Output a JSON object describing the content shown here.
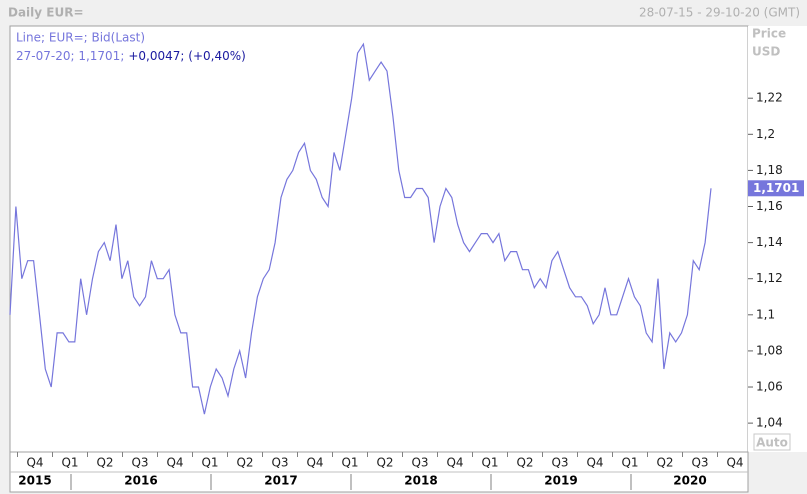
{
  "chart_data": {
    "type": "line",
    "title": "Daily EUR=",
    "date_range": "28-07-15 - 29-10-20 (GMT)",
    "legend_line1": "Line; EUR=; Bid(Last)",
    "legend_date_price": "27-07-20; 1,1701;",
    "legend_change": "+0,0047; (+0,40%)",
    "axis_title": "Price",
    "axis_unit": "USD",
    "scale_button": "Auto",
    "last_label": "1,1701",
    "color": "#7676dc",
    "series": [
      {
        "name": "EUR=",
        "color": "#7676dc",
        "values": [
          1.1,
          1.16,
          1.12,
          1.13,
          1.13,
          1.1,
          1.07,
          1.06,
          1.09,
          1.09,
          1.085,
          1.085,
          1.12,
          1.1,
          1.12,
          1.135,
          1.14,
          1.13,
          1.15,
          1.12,
          1.13,
          1.11,
          1.105,
          1.11,
          1.13,
          1.12,
          1.12,
          1.125,
          1.1,
          1.09,
          1.09,
          1.06,
          1.06,
          1.045,
          1.06,
          1.07,
          1.065,
          1.055,
          1.07,
          1.08,
          1.065,
          1.09,
          1.11,
          1.12,
          1.125,
          1.14,
          1.165,
          1.175,
          1.18,
          1.19,
          1.195,
          1.18,
          1.175,
          1.165,
          1.16,
          1.19,
          1.18,
          1.2,
          1.22,
          1.245,
          1.25,
          1.23,
          1.235,
          1.24,
          1.235,
          1.21,
          1.18,
          1.165,
          1.165,
          1.17,
          1.17,
          1.165,
          1.14,
          1.16,
          1.17,
          1.165,
          1.15,
          1.14,
          1.135,
          1.14,
          1.145,
          1.145,
          1.14,
          1.145,
          1.13,
          1.135,
          1.135,
          1.125,
          1.125,
          1.115,
          1.12,
          1.115,
          1.13,
          1.135,
          1.125,
          1.115,
          1.11,
          1.11,
          1.105,
          1.095,
          1.1,
          1.115,
          1.1,
          1.1,
          1.11,
          1.12,
          1.11,
          1.105,
          1.09,
          1.085,
          1.12,
          1.07,
          1.09,
          1.085,
          1.09,
          1.1,
          1.13,
          1.125,
          1.14,
          1.1701
        ]
      }
    ],
    "ylim": [
      1.024,
      1.26
    ],
    "yticks": [
      {
        "value": 1.04,
        "label": "1,04"
      },
      {
        "value": 1.06,
        "label": "1,06"
      },
      {
        "value": 1.08,
        "label": "1,08"
      },
      {
        "value": 1.1,
        "label": "1,1"
      },
      {
        "value": 1.12,
        "label": "1,12"
      },
      {
        "value": 1.14,
        "label": "1,14"
      },
      {
        "value": 1.16,
        "label": "1,16"
      },
      {
        "value": 1.18,
        "label": "1,18"
      },
      {
        "value": 1.2,
        "label": "1,2"
      },
      {
        "value": 1.22,
        "label": "1,22"
      }
    ],
    "quarters": [
      "Q4",
      "Q1",
      "Q2",
      "Q3",
      "Q4",
      "Q1",
      "Q2",
      "Q3",
      "Q4",
      "Q1",
      "Q2",
      "Q3",
      "Q4",
      "Q1",
      "Q2",
      "Q3",
      "Q4",
      "Q1",
      "Q2",
      "Q3",
      "Q4"
    ],
    "years": [
      "2015",
      "2016",
      "2017",
      "2018",
      "2019",
      "2020"
    ],
    "grid": false
  }
}
